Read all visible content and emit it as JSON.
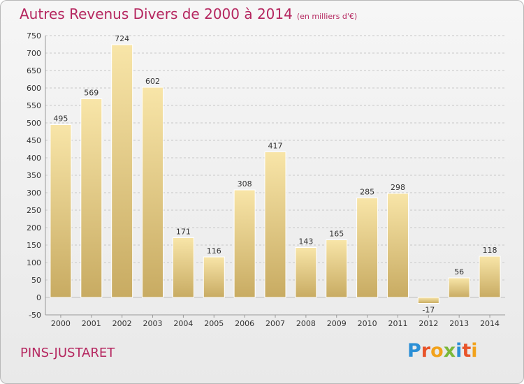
{
  "header": {
    "title": "Autres Revenus Divers de 2000 à 2014",
    "unit": "(en milliers d'€)"
  },
  "footer": {
    "city": "PINS-JUSTARET",
    "brand": "Proxiti"
  },
  "colors": {
    "title": "#b5265f",
    "bar_light": "#f7e2a4",
    "bar_dark": "#c9ac63",
    "grid": "#c7c7c7"
  },
  "chart_data": {
    "type": "bar",
    "title": "Autres Revenus Divers de 2000 à 2014",
    "xlabel": "",
    "ylabel": "",
    "categories": [
      "2000",
      "2001",
      "2002",
      "2003",
      "2004",
      "2005",
      "2006",
      "2007",
      "2008",
      "2009",
      "2010",
      "2011",
      "2012",
      "2013",
      "2014"
    ],
    "values": [
      495,
      569,
      724,
      602,
      171,
      116,
      308,
      417,
      143,
      165,
      285,
      298,
      -17,
      56,
      118
    ],
    "value_labels": [
      "495",
      "569",
      "724",
      "602",
      "171",
      "116",
      "308",
      "417",
      "143",
      "165",
      "285",
      "298",
      "-17",
      "56",
      "118"
    ],
    "yticks": [
      -50,
      0,
      50,
      100,
      150,
      200,
      250,
      300,
      350,
      400,
      450,
      500,
      550,
      600,
      650,
      700,
      750
    ],
    "ylim": [
      -50,
      750
    ],
    "grid": true
  }
}
